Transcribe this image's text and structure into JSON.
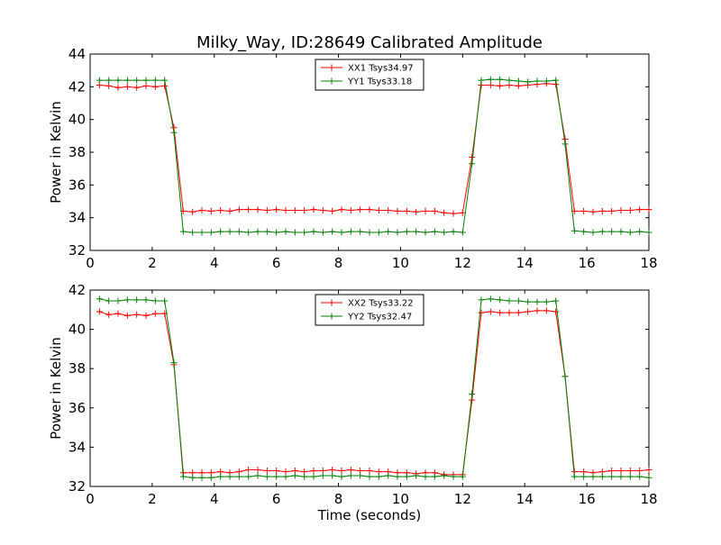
{
  "title": "Milky_Way, ID:28649 Calibrated Amplitude",
  "colors": {
    "red": "#ff0000",
    "green": "#008000"
  },
  "chart_data": [
    {
      "type": "line",
      "xlabel": "",
      "ylabel": "Power in Kelvin",
      "xlim": [
        0,
        18
      ],
      "ylim": [
        32,
        44
      ],
      "xticks": [
        "0",
        "2",
        "4",
        "6",
        "8",
        "10",
        "12",
        "14",
        "16",
        "18"
      ],
      "yticks": [
        "32",
        "34",
        "36",
        "38",
        "40",
        "42",
        "44"
      ],
      "legend": "top-center",
      "x": [
        0.3,
        0.6,
        0.9,
        1.2,
        1.5,
        1.8,
        2.1,
        2.4,
        2.7,
        3.0,
        3.3,
        3.6,
        3.9,
        4.2,
        4.5,
        4.8,
        5.1,
        5.4,
        5.7,
        6.0,
        6.3,
        6.6,
        6.9,
        7.2,
        7.5,
        7.8,
        8.1,
        8.4,
        8.7,
        9.0,
        9.3,
        9.6,
        9.9,
        10.2,
        10.5,
        10.8,
        11.1,
        11.4,
        11.7,
        12.0,
        12.3,
        12.6,
        12.9,
        13.2,
        13.5,
        13.8,
        14.1,
        14.4,
        14.7,
        15.0,
        15.3,
        15.6,
        15.9,
        16.2,
        16.5,
        16.8,
        17.1,
        17.4,
        17.7,
        18.0
      ],
      "series": [
        {
          "name": "XX1 Tsys34.97",
          "color": "#ff0000",
          "values": [
            42.1,
            42.05,
            41.95,
            42.0,
            41.95,
            42.05,
            42.0,
            42.05,
            39.5,
            34.4,
            34.35,
            34.45,
            34.4,
            34.45,
            34.4,
            34.5,
            34.5,
            34.5,
            34.45,
            34.5,
            34.45,
            34.45,
            34.45,
            34.5,
            34.45,
            34.4,
            34.5,
            34.45,
            34.5,
            34.5,
            34.45,
            34.45,
            34.4,
            34.4,
            34.35,
            34.4,
            34.4,
            34.3,
            34.25,
            34.3,
            37.7,
            42.1,
            42.1,
            42.05,
            42.1,
            42.05,
            42.1,
            42.15,
            42.2,
            42.15,
            38.8,
            34.4,
            34.4,
            34.35,
            34.4,
            34.4,
            34.45,
            34.45,
            34.5,
            34.5
          ]
        },
        {
          "name": "YY1 Tsys33.18",
          "color": "#008000",
          "values": [
            42.4,
            42.4,
            42.4,
            42.4,
            42.4,
            42.4,
            42.4,
            42.4,
            39.2,
            33.15,
            33.1,
            33.1,
            33.1,
            33.15,
            33.15,
            33.15,
            33.1,
            33.15,
            33.15,
            33.1,
            33.15,
            33.1,
            33.1,
            33.15,
            33.1,
            33.15,
            33.1,
            33.15,
            33.15,
            33.1,
            33.1,
            33.15,
            33.1,
            33.15,
            33.15,
            33.1,
            33.15,
            33.1,
            33.15,
            33.1,
            37.3,
            42.4,
            42.45,
            42.45,
            42.4,
            42.35,
            42.3,
            42.35,
            42.35,
            42.4,
            38.5,
            33.2,
            33.15,
            33.1,
            33.15,
            33.15,
            33.15,
            33.1,
            33.15,
            33.1
          ]
        }
      ]
    },
    {
      "type": "line",
      "xlabel": "Time (seconds)",
      "ylabel": "Power in Kelvin",
      "xlim": [
        0,
        18
      ],
      "ylim": [
        32,
        42
      ],
      "xticks": [
        "0",
        "2",
        "4",
        "6",
        "8",
        "10",
        "12",
        "14",
        "16",
        "18"
      ],
      "yticks": [
        "32",
        "34",
        "36",
        "38",
        "40",
        "42"
      ],
      "legend": "top-center",
      "x": [
        0.3,
        0.6,
        0.9,
        1.2,
        1.5,
        1.8,
        2.1,
        2.4,
        2.7,
        3.0,
        3.3,
        3.6,
        3.9,
        4.2,
        4.5,
        4.8,
        5.1,
        5.4,
        5.7,
        6.0,
        6.3,
        6.6,
        6.9,
        7.2,
        7.5,
        7.8,
        8.1,
        8.4,
        8.7,
        9.0,
        9.3,
        9.6,
        9.9,
        10.2,
        10.5,
        10.8,
        11.1,
        11.4,
        11.7,
        12.0,
        12.3,
        12.6,
        12.9,
        13.2,
        13.5,
        13.8,
        14.1,
        14.4,
        14.7,
        15.0,
        15.3,
        15.6,
        15.9,
        16.2,
        16.5,
        16.8,
        17.1,
        17.4,
        17.7,
        18.0
      ],
      "series": [
        {
          "name": "XX2 Tsys33.22",
          "color": "#ff0000",
          "values": [
            40.9,
            40.75,
            40.8,
            40.7,
            40.75,
            40.7,
            40.8,
            40.8,
            38.2,
            32.7,
            32.7,
            32.7,
            32.7,
            32.75,
            32.7,
            32.75,
            32.85,
            32.85,
            32.8,
            32.8,
            32.75,
            32.8,
            32.75,
            32.8,
            32.8,
            32.85,
            32.8,
            32.85,
            32.8,
            32.8,
            32.75,
            32.75,
            32.7,
            32.7,
            32.65,
            32.7,
            32.7,
            32.6,
            32.6,
            32.6,
            36.4,
            40.85,
            40.9,
            40.85,
            40.85,
            40.85,
            40.9,
            40.95,
            40.95,
            40.9,
            37.6,
            32.75,
            32.75,
            32.7,
            32.75,
            32.8,
            32.8,
            32.8,
            32.8,
            32.85
          ]
        },
        {
          "name": "YY2 Tsys32.47",
          "color": "#008000",
          "values": [
            41.55,
            41.45,
            41.45,
            41.5,
            41.5,
            41.5,
            41.45,
            41.45,
            38.3,
            32.5,
            32.45,
            32.45,
            32.45,
            32.5,
            32.5,
            32.5,
            32.5,
            32.55,
            32.5,
            32.5,
            32.5,
            32.55,
            32.5,
            32.5,
            32.55,
            32.55,
            32.5,
            32.55,
            32.55,
            32.5,
            32.5,
            32.55,
            32.5,
            32.5,
            32.55,
            32.5,
            32.5,
            32.55,
            32.5,
            32.5,
            36.7,
            41.5,
            41.55,
            41.5,
            41.45,
            41.45,
            41.4,
            41.4,
            41.4,
            41.45,
            37.6,
            32.5,
            32.5,
            32.5,
            32.5,
            32.5,
            32.5,
            32.5,
            32.5,
            32.45
          ]
        }
      ]
    }
  ]
}
